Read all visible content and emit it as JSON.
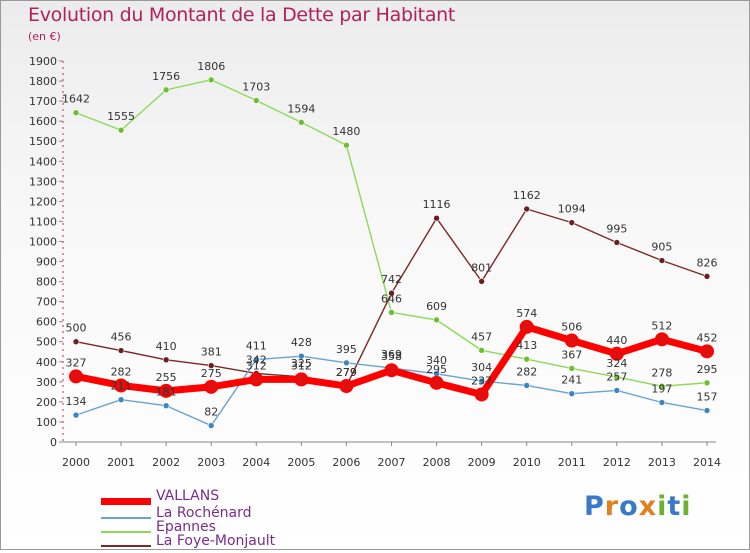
{
  "chart_data": {
    "type": "line",
    "title": "Evolution du Montant de la Dette par Habitant",
    "subtitle": "(en €)",
    "x": [
      "2000",
      "2001",
      "2002",
      "2003",
      "2004",
      "2005",
      "2006",
      "2007",
      "2008",
      "2009",
      "2010",
      "2011",
      "2012",
      "2013",
      "2014"
    ],
    "yticks": [
      0,
      100,
      200,
      300,
      400,
      500,
      600,
      700,
      800,
      900,
      1000,
      1100,
      1200,
      1300,
      1400,
      1500,
      1600,
      1700,
      1800,
      1900
    ],
    "ylim": [
      0,
      1900
    ],
    "grid": false,
    "legend_position": "bottom-left",
    "series": [
      {
        "name": "VALLANS",
        "color": "#ff0000",
        "marker": "#e01010",
        "values": [
          327,
          282,
          255,
          275,
          312,
          312,
          279,
          358,
          295,
          237,
          574,
          506,
          440,
          512,
          452
        ]
      },
      {
        "name": "La Rochénard",
        "color": "#6aa3d0",
        "marker": "#3a86c4",
        "values": [
          134,
          211,
          181,
          82,
          411,
          428,
          395,
          369,
          340,
          304,
          282,
          241,
          257,
          197,
          157
        ]
      },
      {
        "name": "Epannes",
        "color": "#8ed85a",
        "marker": "#6cc02e",
        "values": [
          1642,
          1555,
          1756,
          1806,
          1703,
          1594,
          1480,
          646,
          609,
          457,
          413,
          367,
          324,
          278,
          295
        ]
      },
      {
        "name": "La Foye-Monjault",
        "color": "#7a2828",
        "marker": "#6b1f1f",
        "values": [
          500,
          456,
          410,
          381,
          342,
          325,
          279,
          742,
          1116,
          801,
          1162,
          1094,
          995,
          905,
          826
        ]
      }
    ]
  },
  "logo": {
    "letters": [
      "P",
      "r",
      "o",
      "x",
      "i",
      "t",
      "i"
    ],
    "colors": [
      "#3a78c8",
      "#e08020",
      "#3a78c8",
      "#e08020",
      "#70b030",
      "#3a78c8",
      "#70b030"
    ]
  }
}
